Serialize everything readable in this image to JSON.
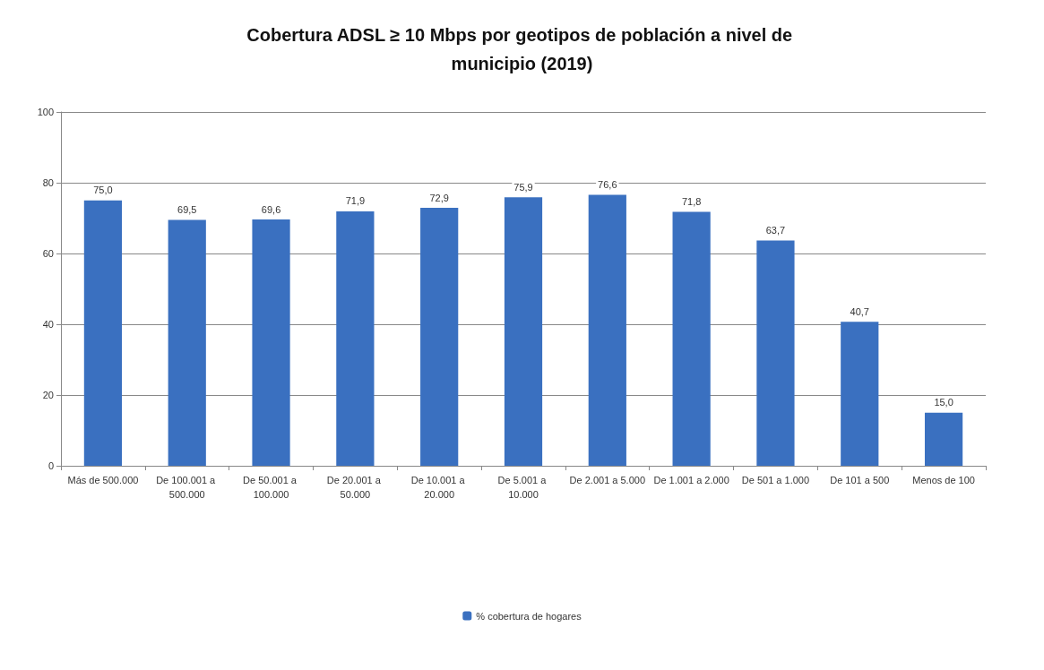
{
  "chart_data": {
    "type": "bar",
    "title": "Cobertura ADSL ≥ 10 Mbps por geotipos de población a nivel de municipio (2019)",
    "categories": [
      "Más de 500.000",
      "De 100.001 a 500.000",
      "De 50.001 a 100.000",
      "De 20.001 a 50.000",
      "De 10.001 a 20.000",
      "De 5.001 a 10.000",
      "De 2.001 a 5.000",
      "De 1.001 a 2.000",
      "De 501 a 1.000",
      "De 101 a 500",
      "Menos de 100"
    ],
    "series": [
      {
        "name": "% cobertura de hogares",
        "color": "#3a70c0",
        "values": [
          75.0,
          69.5,
          69.6,
          71.9,
          72.9,
          75.9,
          76.6,
          71.8,
          63.7,
          40.7,
          15.0
        ],
        "value_labels": [
          "75,0",
          "69,5",
          "69,6",
          "71,9",
          "72,9",
          "75,9",
          "76,6",
          "71,8",
          "63,7",
          "40,7",
          "15,0"
        ]
      }
    ],
    "ylim": [
      0,
      100
    ],
    "yticks": [
      0,
      20,
      40,
      60,
      80,
      100
    ],
    "grid": "y",
    "legend": "bottom"
  }
}
